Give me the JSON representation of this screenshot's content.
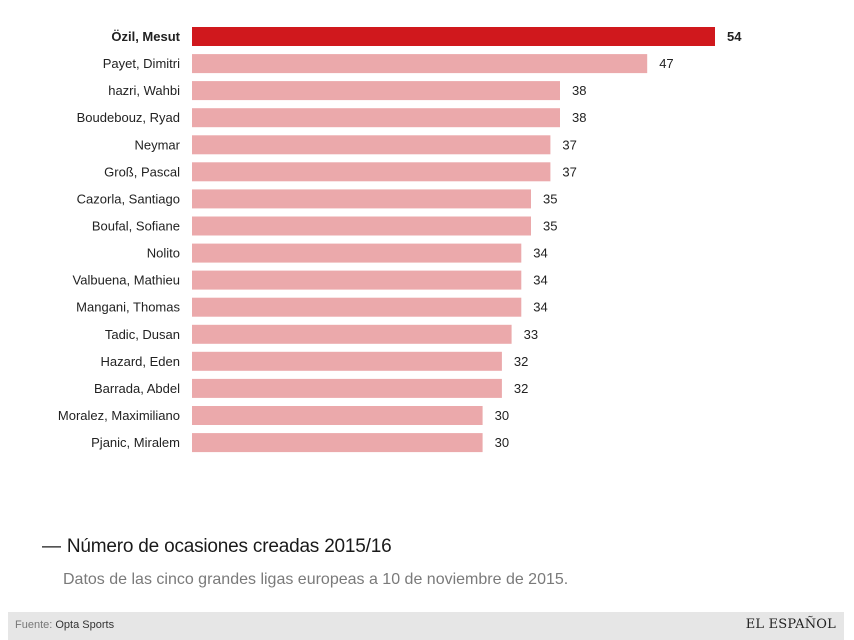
{
  "chart_data": {
    "type": "bar",
    "orientation": "horizontal",
    "categories": [
      "Özil, Mesut",
      "Payet, Dimitri",
      "hazri, Wahbi",
      "Boudebouz, Ryad",
      "Neymar",
      "Groß, Pascal",
      "Cazorla, Santiago",
      "Boufal, Sofiane",
      "Nolito",
      "Valbuena, Mathieu",
      "Mangani, Thomas",
      "Tadic, Dusan",
      "Hazard, Eden",
      "Barrada, Abdel",
      "Moralez, Maximiliano",
      "Pjanic, Miralem"
    ],
    "values": [
      54,
      47,
      38,
      38,
      37,
      37,
      35,
      35,
      34,
      34,
      34,
      33,
      32,
      32,
      30,
      30
    ],
    "highlight_index": 0,
    "xlim": [
      0,
      54
    ],
    "grid": false,
    "colors": {
      "highlight": "#d0181d",
      "bar": "#eba9ab"
    }
  },
  "title": "Número de ocasiones creadas 2015/16",
  "subtitle": "Datos de las cinco grandes ligas europeas a 10 de noviembre de 2015.",
  "footer": {
    "source_prefix": "Fuente:",
    "source_name": "Opta Sports",
    "brand": "EL ESPAÑOL"
  }
}
